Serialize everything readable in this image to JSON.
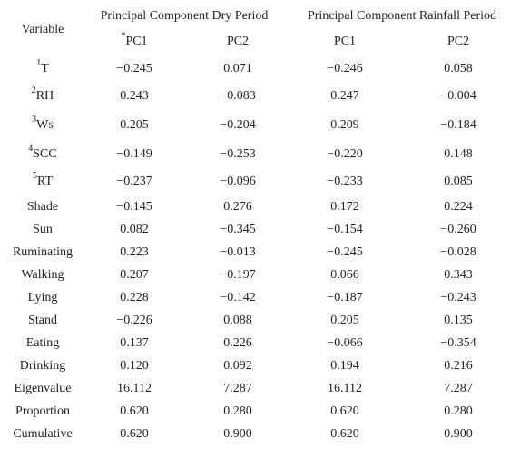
{
  "table": {
    "header": {
      "variable": "Variable",
      "groups": [
        "Principal Component Dry Period",
        "Principal Component Rainfall Period"
      ],
      "columns": [
        {
          "mark": "*",
          "label": "PC1"
        },
        {
          "label": "PC2"
        },
        {
          "label": "PC1"
        },
        {
          "label": "PC2"
        }
      ]
    },
    "rows": [
      {
        "variable": {
          "sup": "1",
          "label": "T"
        },
        "values": [
          "−0.245",
          "0.071",
          "−0.246",
          "0.058"
        ]
      },
      {
        "variable": {
          "sup": "2",
          "label": "RH"
        },
        "values": [
          "0.243",
          "−0.083",
          "0.247",
          "−0.004"
        ]
      },
      {
        "variable": {
          "sup": "3",
          "label": "Ws"
        },
        "values": [
          "0.205",
          "−0.204",
          "0.209",
          "−0.184"
        ]
      },
      {
        "variable": {
          "sup": "4",
          "label": "SCC"
        },
        "values": [
          "−0.149",
          "−0.253",
          "−0.220",
          "0.148"
        ]
      },
      {
        "variable": {
          "sup": "5",
          "label": "RT"
        },
        "values": [
          "−0.237",
          "−0.096",
          "−0.233",
          "0.085"
        ]
      },
      {
        "variable": {
          "label": "Shade"
        },
        "values": [
          "−0.145",
          "0.276",
          "0.172",
          "0.224"
        ]
      },
      {
        "variable": {
          "label": "Sun"
        },
        "values": [
          "0.082",
          "−0.345",
          "−0.154",
          "−0.260"
        ]
      },
      {
        "variable": {
          "label": "Ruminating"
        },
        "values": [
          "0.223",
          "−0.013",
          "−0.245",
          "−0.028"
        ]
      },
      {
        "variable": {
          "label": "Walking"
        },
        "values": [
          "0.207",
          "−0.197",
          "0.066",
          "0.343"
        ]
      },
      {
        "variable": {
          "label": "Lying"
        },
        "values": [
          "0.228",
          "−0.142",
          "−0.187",
          "−0.243"
        ]
      },
      {
        "variable": {
          "label": "Stand"
        },
        "values": [
          "−0.226",
          "0.088",
          "0.205",
          "0.135"
        ]
      },
      {
        "variable": {
          "label": "Eating"
        },
        "values": [
          "0.137",
          "0.226",
          "−0.066",
          "−0.354"
        ]
      },
      {
        "variable": {
          "label": "Drinking"
        },
        "values": [
          "0.120",
          "0.092",
          "0.194",
          "0.216"
        ]
      },
      {
        "variable": {
          "label": "Eigenvalue"
        },
        "values": [
          "16.112",
          "7.287",
          "16.112",
          "7.287"
        ]
      },
      {
        "variable": {
          "label": "Proportion"
        },
        "values": [
          "0.620",
          "0.280",
          "0.620",
          "0.280"
        ]
      },
      {
        "variable": {
          "label": "Cumulative"
        },
        "values": [
          "0.620",
          "0.900",
          "0.620",
          "0.900"
        ]
      }
    ]
  }
}
